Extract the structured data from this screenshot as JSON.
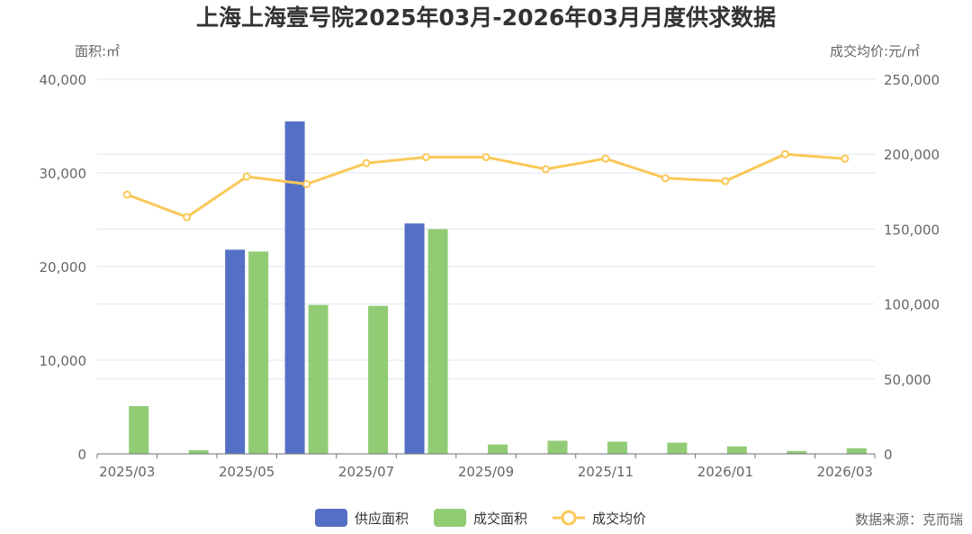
{
  "chart_data": {
    "type": "bar",
    "title": "上海上海壹号院2025年03月-2026年03月月度供求数据",
    "left_axis_label": "面积:㎡",
    "right_axis_label": "成交均价:元/㎡",
    "categories": [
      "2025/03",
      "2025/04",
      "2025/05",
      "2025/06",
      "2025/07",
      "2025/08",
      "2025/09",
      "2025/10",
      "2025/11",
      "2025/12",
      "2026/01",
      "2026/02",
      "2026/03"
    ],
    "x_tick_labels": [
      "2025/03",
      "2025/05",
      "2025/07",
      "2025/09",
      "2025/11",
      "2026/01",
      "2026/03"
    ],
    "left_ylim": [
      0,
      40000
    ],
    "left_ticks": [
      "0",
      "10,000",
      "20,000",
      "30,000",
      "40,000"
    ],
    "right_ylim": [
      0,
      250000
    ],
    "right_ticks": [
      "0",
      "50,000",
      "100,000",
      "150,000",
      "200,000",
      "250,000"
    ],
    "series": [
      {
        "name": "供应面积",
        "type": "bar",
        "axis": "left",
        "color": "#5470c6",
        "values": [
          0,
          0,
          21800,
          35500,
          0,
          24600,
          0,
          0,
          0,
          0,
          0,
          0,
          0
        ]
      },
      {
        "name": "成交面积",
        "type": "bar",
        "axis": "left",
        "color": "#91cc75",
        "values": [
          5100,
          400,
          21600,
          15900,
          15800,
          24000,
          1000,
          1400,
          1300,
          1200,
          800,
          300,
          600
        ]
      },
      {
        "name": "成交均价",
        "type": "line",
        "axis": "right",
        "color": "#fac858",
        "values": [
          173000,
          158000,
          185000,
          180000,
          194000,
          198000,
          198000,
          190000,
          197000,
          184000,
          182000,
          200000,
          197000
        ]
      }
    ],
    "legend_position": "bottom-center",
    "grid": true
  },
  "source_text": "数据来源：克而瑞"
}
